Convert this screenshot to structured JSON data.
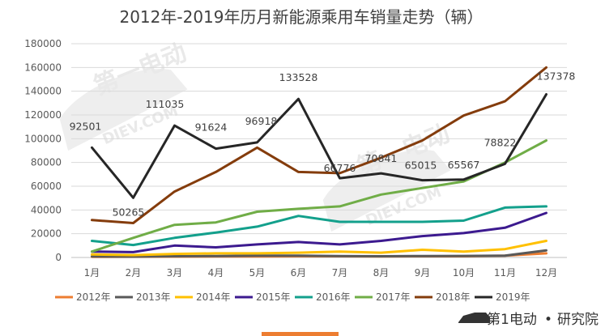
{
  "chart_data": {
    "type": "line",
    "title": "2012年-2019年历月新能源乘用车销量走势（辆）",
    "categories": [
      "1月",
      "2月",
      "3月",
      "4月",
      "5月",
      "6月",
      "7月",
      "8月",
      "9月",
      "10月",
      "11月",
      "12月"
    ],
    "ylim": [
      0,
      180000
    ],
    "yticks": [
      0,
      20000,
      40000,
      60000,
      80000,
      100000,
      120000,
      140000,
      160000,
      180000
    ],
    "ytick_labels": [
      "0",
      "20000",
      "40000",
      "60000",
      "80000",
      "100000",
      "120000",
      "140000",
      "160000",
      "180000"
    ],
    "grid": true,
    "legend_position": "bottom",
    "series": [
      {
        "name": "2012年",
        "color": "#ed7d31",
        "values": [
          500,
          600,
          700,
          800,
          900,
          1000,
          1000,
          900,
          1000,
          1000,
          1500,
          3500
        ]
      },
      {
        "name": "2013年",
        "color": "#595959",
        "values": [
          800,
          700,
          1000,
          1200,
          1500,
          1600,
          1200,
          1000,
          1200,
          1300,
          1500,
          6000
        ]
      },
      {
        "name": "2014年",
        "color": "#ffc000",
        "values": [
          2500,
          2000,
          3000,
          3500,
          3500,
          4000,
          5000,
          4000,
          6500,
          5000,
          7000,
          14000
        ]
      },
      {
        "name": "2015年",
        "color": "#3c1a8f",
        "values": [
          5000,
          4500,
          10000,
          8500,
          11000,
          13000,
          11000,
          14000,
          18000,
          20500,
          25000,
          37500
        ]
      },
      {
        "name": "2016年",
        "color": "#13a08c",
        "values": [
          14000,
          10500,
          16500,
          21000,
          26000,
          35000,
          30000,
          30000,
          30000,
          31000,
          42000,
          43000
        ]
      },
      {
        "name": "2017年",
        "color": "#70ad47",
        "values": [
          5000,
          16500,
          27500,
          29500,
          38500,
          41000,
          43000,
          53000,
          58500,
          64000,
          80000,
          98500
        ]
      },
      {
        "name": "2018年",
        "color": "#843c0c",
        "values": [
          31500,
          29000,
          55500,
          72000,
          92500,
          72000,
          71000,
          84000,
          98500,
          119500,
          131500,
          160000
        ]
      },
      {
        "name": "2019年",
        "color": "#262626",
        "values": [
          92501,
          50265,
          111035,
          91624,
          96918,
          133528,
          66776,
          70841,
          65015,
          65567,
          78822,
          137378
        ]
      }
    ],
    "data_labels": {
      "series": "2019年",
      "labels": [
        "92501",
        "50265",
        "111035",
        "91624",
        "96918",
        "133528",
        "66776",
        "70841",
        "65015",
        "65567",
        "78822",
        "137378"
      ]
    }
  },
  "watermark": {
    "text": "DIEV.COM",
    "brand_cn": "第一电动"
  },
  "footer": {
    "brand": "第1电动",
    "separator": "•",
    "suffix": "研究院"
  }
}
